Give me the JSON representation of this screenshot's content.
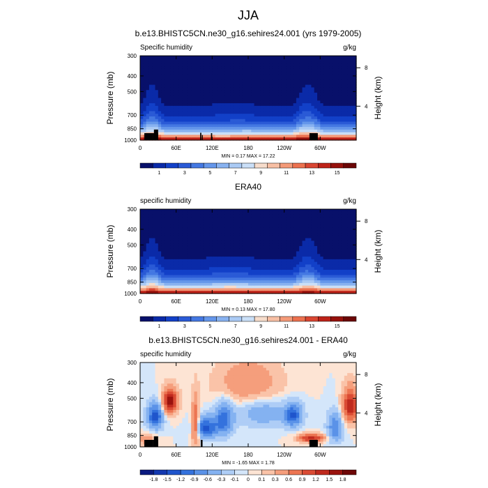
{
  "figure": {
    "title": "JJA"
  },
  "chart_data": [
    {
      "type": "heatmap",
      "title": "b.e13.BHISTC5CN.ne30_g16.sehires24.001 (yrs 1979-2005)",
      "left_label": "Specific humidity",
      "right_label": "g/kg",
      "ylabel": "Pressure (mb)",
      "ylabel_right": "Height (km)",
      "xticks": [
        "0",
        "60E",
        "120E",
        "180",
        "120W",
        "60W"
      ],
      "xtick_lons": [
        0,
        60,
        120,
        180,
        240,
        300
      ],
      "xlim": [
        0,
        360
      ],
      "yticks": [
        300,
        400,
        500,
        700,
        850,
        1000
      ],
      "ylim": [
        300,
        1000
      ],
      "height_ticks": [
        {
          "label": "8",
          "pressure": 356
        },
        {
          "label": "4",
          "pressure": 616
        }
      ],
      "stats": "MIN =   0.17  MAX =  17.22",
      "min": 0.17,
      "max": 17.22,
      "colorbar_labels": [
        "1",
        "3",
        "5",
        "7",
        "9",
        "11",
        "13",
        "15"
      ],
      "field": "humidity",
      "variant": "model"
    },
    {
      "type": "heatmap",
      "title": "ERA40",
      "left_label": "specific humidity",
      "right_label": "g/kg",
      "ylabel": "Pressure (mb)",
      "ylabel_right": "Height (km)",
      "xticks": [
        "0",
        "60E",
        "120E",
        "180",
        "120W",
        "60W"
      ],
      "xtick_lons": [
        0,
        60,
        120,
        180,
        240,
        300
      ],
      "xlim": [
        0,
        360
      ],
      "yticks": [
        300,
        400,
        500,
        700,
        850,
        1000
      ],
      "ylim": [
        300,
        1000
      ],
      "height_ticks": [
        {
          "label": "8",
          "pressure": 356
        },
        {
          "label": "4",
          "pressure": 616
        }
      ],
      "stats": "MIN =   0.13  MAX =  17.80",
      "min": 0.13,
      "max": 17.8,
      "colorbar_labels": [
        "1",
        "3",
        "5",
        "7",
        "9",
        "11",
        "13",
        "15"
      ],
      "field": "humidity",
      "variant": "obs"
    },
    {
      "type": "heatmap",
      "title": "b.e13.BHISTC5CN.ne30_g16.sehires24.001 - ERA40",
      "left_label": "specific humidity",
      "right_label": "g/kg",
      "ylabel": "Pressure (mb)",
      "ylabel_right": "Height (km)",
      "xticks": [
        "0",
        "60E",
        "120E",
        "180",
        "120W",
        "60W"
      ],
      "xtick_lons": [
        0,
        60,
        120,
        180,
        240,
        300
      ],
      "xlim": [
        0,
        360
      ],
      "yticks": [
        300,
        400,
        500,
        700,
        850,
        1000
      ],
      "ylim": [
        300,
        1000
      ],
      "height_ticks": [
        {
          "label": "8",
          "pressure": 356
        },
        {
          "label": "4",
          "pressure": 616
        }
      ],
      "stats": "MIN =  -1.65  MAX =   1.78",
      "min": -1.65,
      "max": 1.78,
      "colorbar_labels": [
        "-1.8",
        "-1.5",
        "-1.2",
        "-0.9",
        "-0.6",
        "-0.3",
        "-0.1",
        "0",
        "0.1",
        "0.3",
        "0.6",
        "0.9",
        "1.2",
        "1.5",
        "1.8"
      ],
      "field": "difference",
      "variant": "diff"
    }
  ],
  "colors": {
    "humidity_scale": [
      "#08106a",
      "#0a2aa8",
      "#1240c8",
      "#2a5ad6",
      "#4478e2",
      "#6496ea",
      "#88b2f0",
      "#aacaf4",
      "#cadff7",
      "#f6dccb",
      "#f7bfa4",
      "#f49a78",
      "#ec714f",
      "#d94632",
      "#bd2218",
      "#96110c",
      "#6b0606"
    ],
    "diff_scale": [
      "#0a1a80",
      "#1338b0",
      "#1f55cc",
      "#3472dd",
      "#5a92e8",
      "#84b2f1",
      "#aecdf6",
      "#d4e6fa",
      "#fde4d4",
      "#fac3a8",
      "#f59e7c",
      "#ec7552",
      "#da4b34",
      "#bf2a1e",
      "#9a130e",
      "#6e0707"
    ]
  }
}
